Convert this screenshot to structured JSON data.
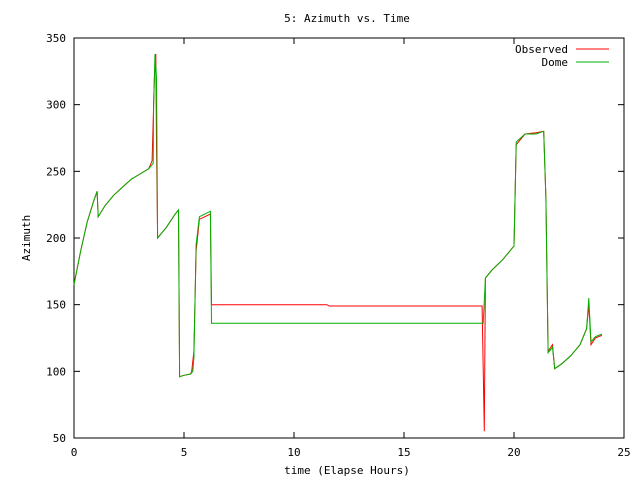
{
  "chart_data": {
    "type": "line",
    "title": "5: Azimuth vs. Time",
    "xlabel": "time (Elapse Hours)",
    "ylabel": "Azimuth",
    "xlim": [
      0,
      25
    ],
    "ylim": [
      50,
      350
    ],
    "x_ticks": [
      0,
      5,
      10,
      15,
      20,
      25
    ],
    "y_ticks": [
      50,
      100,
      150,
      200,
      250,
      300,
      350
    ],
    "grid": false,
    "legend_position": "top-right",
    "series": [
      {
        "name": "Observed",
        "color": "#ff0000",
        "points": [
          [
            0,
            165
          ],
          [
            0.3,
            190
          ],
          [
            0.6,
            212
          ],
          [
            0.9,
            228
          ],
          [
            1.05,
            235
          ],
          [
            1.1,
            216
          ],
          [
            1.4,
            224
          ],
          [
            1.8,
            232
          ],
          [
            2.2,
            238
          ],
          [
            2.6,
            244
          ],
          [
            3.0,
            248
          ],
          [
            3.4,
            252
          ],
          [
            3.55,
            258
          ],
          [
            3.6,
            288
          ],
          [
            3.65,
            318
          ],
          [
            3.72,
            338
          ],
          [
            3.75,
            270
          ],
          [
            3.8,
            200
          ],
          [
            4.2,
            208
          ],
          [
            4.6,
            218
          ],
          [
            4.75,
            221
          ],
          [
            4.8,
            96
          ],
          [
            5.0,
            97
          ],
          [
            5.3,
            98
          ],
          [
            5.35,
            100
          ],
          [
            5.45,
            115
          ],
          [
            5.55,
            190
          ],
          [
            5.7,
            214
          ],
          [
            6.2,
            218
          ],
          [
            6.25,
            150
          ],
          [
            8,
            150
          ],
          [
            11.5,
            150
          ],
          [
            11.6,
            149
          ],
          [
            18.55,
            149
          ],
          [
            18.65,
            55
          ],
          [
            18.7,
            170
          ],
          [
            19,
            176
          ],
          [
            19.5,
            184
          ],
          [
            20,
            194
          ],
          [
            20.1,
            270
          ],
          [
            20.5,
            278
          ],
          [
            21.0,
            279
          ],
          [
            21.35,
            280
          ],
          [
            21.45,
            230
          ],
          [
            21.55,
            115
          ],
          [
            21.75,
            120
          ],
          [
            21.85,
            102
          ],
          [
            22.2,
            106
          ],
          [
            22.6,
            112
          ],
          [
            23.0,
            120
          ],
          [
            23.3,
            132
          ],
          [
            23.4,
            150
          ],
          [
            23.5,
            120
          ],
          [
            23.7,
            125
          ],
          [
            24.0,
            127
          ]
        ]
      },
      {
        "name": "Dome",
        "color": "#00b000",
        "points": [
          [
            0,
            165
          ],
          [
            0.3,
            190
          ],
          [
            0.6,
            212
          ],
          [
            0.9,
            228
          ],
          [
            1.05,
            235
          ],
          [
            1.1,
            216
          ],
          [
            1.4,
            224
          ],
          [
            1.8,
            232
          ],
          [
            2.2,
            238
          ],
          [
            2.6,
            244
          ],
          [
            3.0,
            248
          ],
          [
            3.4,
            252
          ],
          [
            3.6,
            256
          ],
          [
            3.62,
            300
          ],
          [
            3.68,
            338
          ],
          [
            3.75,
            320
          ],
          [
            3.8,
            200
          ],
          [
            4.2,
            208
          ],
          [
            4.6,
            218
          ],
          [
            4.75,
            221
          ],
          [
            4.8,
            96
          ],
          [
            5.0,
            97
          ],
          [
            5.3,
            98
          ],
          [
            5.4,
            100
          ],
          [
            5.45,
            110
          ],
          [
            5.55,
            195
          ],
          [
            5.7,
            216
          ],
          [
            6.2,
            220
          ],
          [
            6.25,
            136
          ],
          [
            18.6,
            136
          ],
          [
            18.7,
            170
          ],
          [
            19,
            176
          ],
          [
            19.5,
            184
          ],
          [
            20,
            194
          ],
          [
            20.1,
            272
          ],
          [
            20.5,
            278
          ],
          [
            21.0,
            278
          ],
          [
            21.35,
            280
          ],
          [
            21.45,
            230
          ],
          [
            21.55,
            114
          ],
          [
            21.75,
            118
          ],
          [
            21.85,
            102
          ],
          [
            22.2,
            106
          ],
          [
            22.6,
            112
          ],
          [
            23.0,
            120
          ],
          [
            23.3,
            132
          ],
          [
            23.4,
            155
          ],
          [
            23.5,
            122
          ],
          [
            23.7,
            126
          ],
          [
            24.0,
            128
          ]
        ]
      }
    ]
  }
}
